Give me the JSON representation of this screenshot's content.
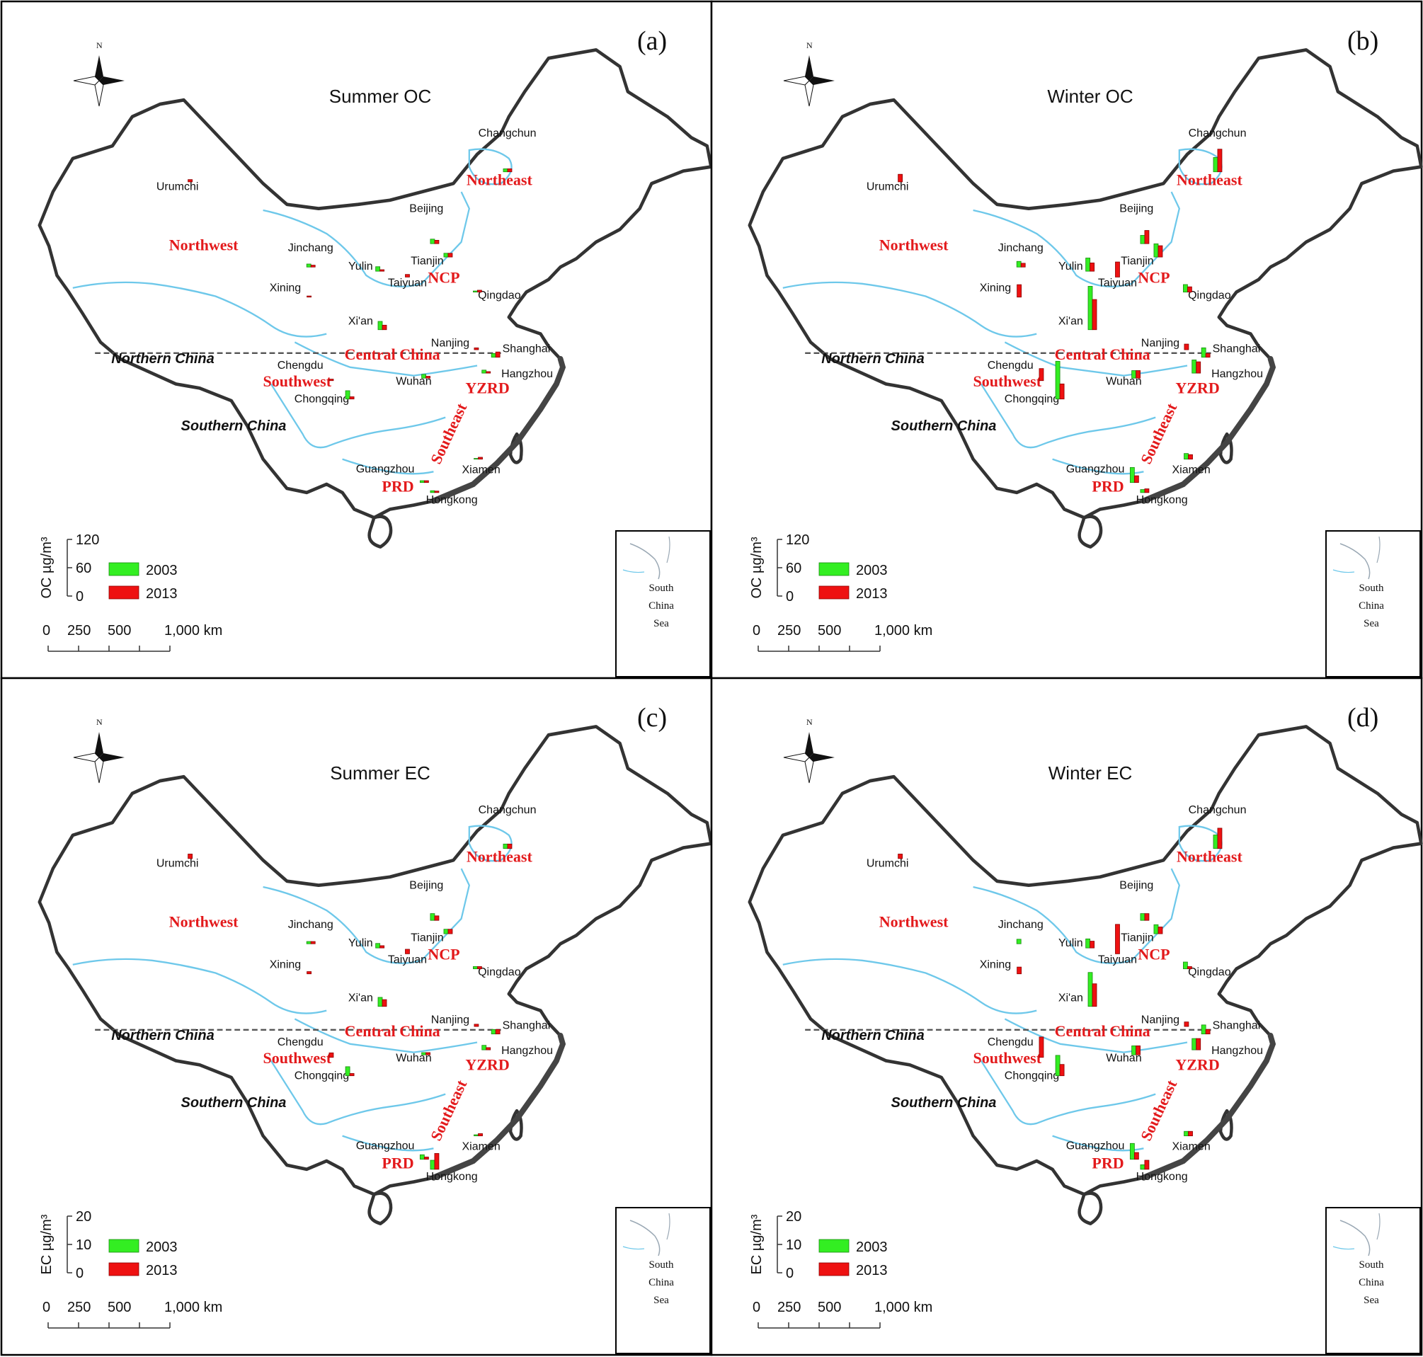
{
  "legend_years": [
    "2003",
    "2013"
  ],
  "colors": {
    "y2003": "#33ee22",
    "y2013": "#ee1111",
    "region_text": "#e31a1c",
    "river": "#6ec8ea"
  },
  "scale_bar": {
    "labels": [
      "0",
      "250",
      "500",
      "1,000 km"
    ]
  },
  "compass": {
    "north": "N"
  },
  "inset": {
    "lines": [
      "South",
      "China",
      "Sea"
    ]
  },
  "zones": {
    "north": "Northern China",
    "south": "Southern China"
  },
  "regions": [
    {
      "name": "Northeast",
      "pos": [
        638,
        232
      ]
    },
    {
      "name": "Northwest",
      "pos": [
        265,
        310
      ]
    },
    {
      "name": "NCP",
      "pos": [
        568,
        349
      ]
    },
    {
      "name": "Central China",
      "pos": [
        503,
        441
      ]
    },
    {
      "name": "Southwest",
      "pos": [
        383,
        473
      ]
    },
    {
      "name": "YZRD",
      "pos": [
        623,
        481
      ]
    },
    {
      "name": "Southeast",
      "pos": [
        580,
        532
      ],
      "rotate": -65
    },
    {
      "name": "PRD",
      "pos": [
        510,
        599
      ]
    }
  ],
  "cities": [
    "Urumchi",
    "Changchun",
    "Beijing",
    "Jinchang",
    "Tianjin",
    "Yulin",
    "Taiyuan",
    "Xining",
    "Qingdao",
    "Xi'an",
    "Nanjing",
    "Shanghai",
    "Chengdu",
    "Hangzhou",
    "Wuhan",
    "Chongqing",
    "Guangzhou",
    "Xiamen",
    "Hongkong"
  ],
  "panels": [
    {
      "label": "(a)",
      "title": "Summer OC",
      "legend_axis": "OC µg/m³",
      "legend_ticks": [
        "120",
        "60",
        "0"
      ],
      "scale_max": 120,
      "chart_data": {
        "type": "bar",
        "series": [
          {
            "name": "2003",
            "values": [
              0,
              8,
              12,
              8,
              10,
              12,
              0,
              0,
              3,
              22,
              0,
              10,
              0,
              8,
              10,
              22,
              5,
              2,
              5
            ]
          },
          {
            "name": "2013",
            "values": [
              6,
              8,
              9,
              5,
              10,
              4,
              7,
              3,
              5,
              12,
              5,
              14,
              4,
              4,
              5,
              6,
              5,
              5,
              4
            ]
          }
        ]
      }
    },
    {
      "label": "(b)",
      "title": "Winter OC",
      "legend_axis": "OC µg/m³",
      "legend_ticks": [
        "120",
        "60",
        "0"
      ],
      "scale_max": 120,
      "chart_data": {
        "type": "bar",
        "series": [
          {
            "name": "2003",
            "values": [
              0,
              38,
              22,
              15,
              35,
              35,
              0,
              0,
              20,
              115,
              0,
              25,
              0,
              35,
              20,
              100,
              40,
              15,
              8
            ]
          },
          {
            "name": "2013",
            "values": [
              20,
              60,
              35,
              10,
              30,
              22,
              40,
              33,
              14,
              80,
              15,
              10,
              32,
              30,
              20,
              40,
              18,
              12,
              10
            ]
          }
        ]
      }
    },
    {
      "label": "(c)",
      "title": "Summer EC",
      "legend_axis": "EC µg/m³",
      "legend_ticks": [
        "20",
        "10",
        "0"
      ],
      "scale_max": 20,
      "chart_data": {
        "type": "bar",
        "series": [
          {
            "name": "2003",
            "values": [
              0,
              2,
              3,
              1,
              2,
              2,
              0,
              0,
              1,
              4,
              0,
              2,
              0,
              2,
              1,
              4,
              2,
              0.5,
              4
            ]
          },
          {
            "name": "2013",
            "values": [
              2,
              2,
              2,
              1,
              2,
              1,
              2,
              1,
              1,
              3,
              1,
              2,
              2,
              1,
              1,
              1,
              1,
              1,
              7
            ]
          }
        ]
      }
    },
    {
      "label": "(d)",
      "title": "Winter EC",
      "legend_axis": "EC µg/m³",
      "legend_ticks": [
        "20",
        "10",
        "0"
      ],
      "scale_max": 20,
      "chart_data": {
        "type": "bar",
        "series": [
          {
            "name": "2003",
            "values": [
              0,
              6,
              3,
              2,
              4,
              4,
              0,
              0,
              3,
              15,
              0,
              4,
              0,
              5,
              4,
              9,
              7,
              2,
              2
            ]
          },
          {
            "name": "2013",
            "values": [
              2,
              9,
              3,
              0,
              3,
              3,
              13,
              3,
              1,
              10,
              2,
              2,
              9,
              5,
              4,
              5,
              3,
              2,
              4
            ]
          }
        ]
      }
    }
  ]
}
